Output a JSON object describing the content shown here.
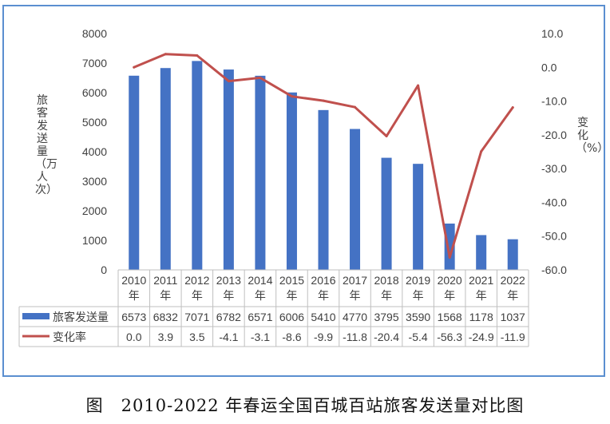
{
  "caption": {
    "prefix": "图",
    "text": "2010-2022 年春运全国百城百站旅客发送量对比图"
  },
  "chart_data": {
    "type": "bar",
    "combo": "bar + line, dual y-axis, with data table",
    "categories": [
      "2010年",
      "2011年",
      "2012年",
      "2013年",
      "2014年",
      "2015年",
      "2016年",
      "2017年",
      "2018年",
      "2019年",
      "2020年",
      "2021年",
      "2022年"
    ],
    "series": [
      {
        "name": "旅客发送量",
        "type": "bar",
        "axis": "left",
        "color": "#4472c4",
        "values": [
          6573,
          6832,
          7071,
          6782,
          6571,
          6006,
          5410,
          4770,
          3795,
          3590,
          1568,
          1178,
          1037
        ],
        "table_values": [
          "6573",
          "6832",
          "7071",
          "6782",
          "6571",
          "6006",
          "5410",
          "4770",
          "3795",
          "3590",
          "1568",
          "1178",
          "1037"
        ]
      },
      {
        "name": "变化率",
        "type": "line",
        "axis": "right",
        "color": "#c0504d",
        "values": [
          0.0,
          3.9,
          3.5,
          -4.1,
          -3.1,
          -8.6,
          -9.9,
          -11.8,
          -20.4,
          -5.4,
          -56.3,
          -24.9,
          -11.9
        ],
        "table_values": [
          "0.0",
          "3.9",
          "3.5",
          "-4.1",
          "-3.1",
          "-8.6",
          "-9.9",
          "-11.8",
          "-20.4",
          "-5.4",
          "-56.3",
          "-24.9",
          "-11.9"
        ]
      }
    ],
    "ylabel": "旅客发送量（万人次）",
    "y2label": "变化（%）",
    "ylim": [
      0,
      8000
    ],
    "yticks": [
      "0",
      "1000",
      "2000",
      "3000",
      "4000",
      "5000",
      "6000",
      "7000",
      "8000"
    ],
    "y2lim": [
      -60,
      10
    ],
    "y2ticks": [
      "10.0",
      "0.0",
      "-10.0",
      "-20.0",
      "-30.0",
      "-40.0",
      "-50.0",
      "-60.0"
    ],
    "grid": false,
    "legend": "data table below plot"
  }
}
